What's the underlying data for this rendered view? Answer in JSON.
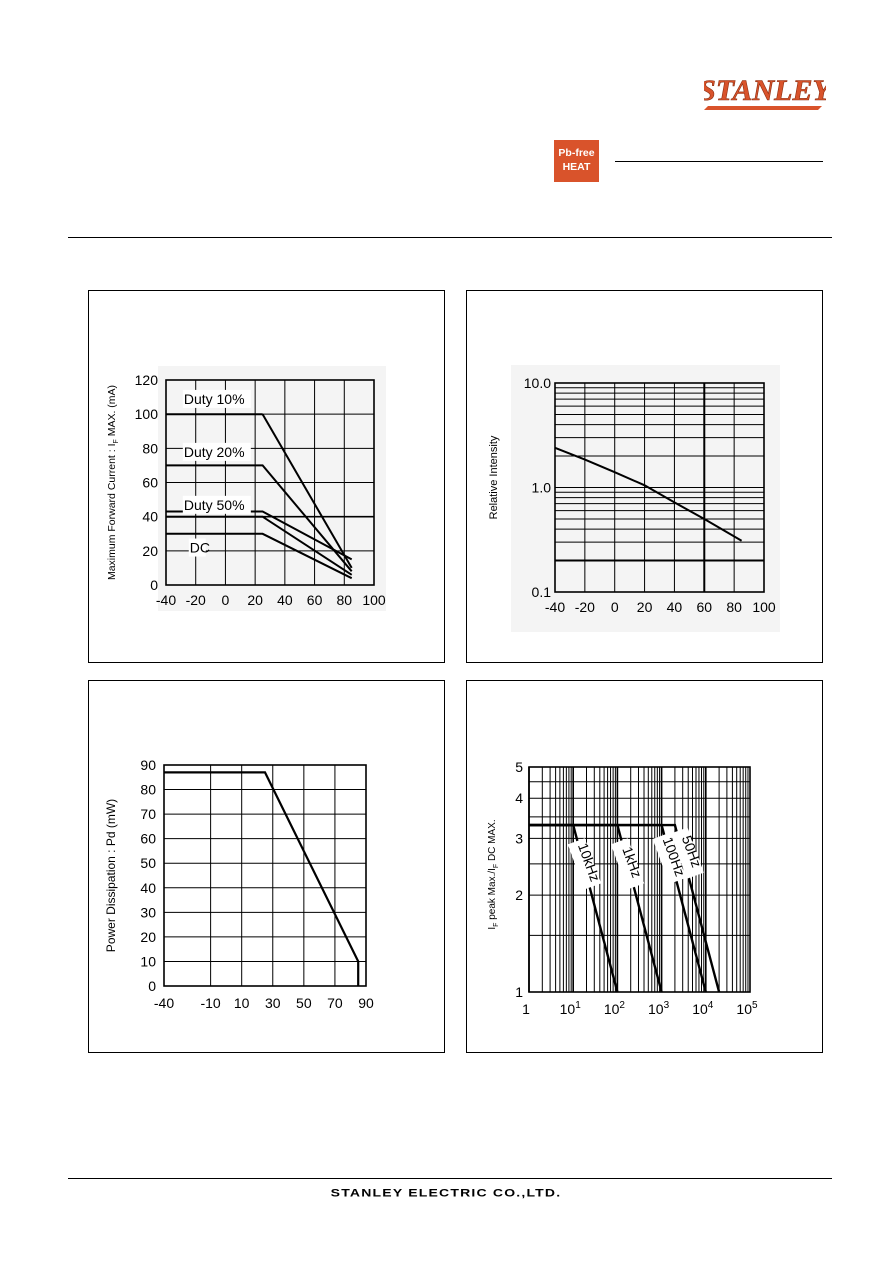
{
  "header": {
    "logo_text": "STANLEY",
    "badge": {
      "line1": "Pb-free",
      "line2": "HEAT"
    },
    "brand_color": "#d9532b"
  },
  "footer": {
    "company": "STANLEY ELECTRIC CO.,LTD."
  },
  "chart_data": [
    {
      "type": "line",
      "ylabel_main": "Maximum Forward Current : I",
      "ylabel_sub": "F",
      "ylabel_rest": " MAX. (mA)",
      "xlim": [
        -40,
        100
      ],
      "ylim": [
        0,
        120
      ],
      "xticks": [
        "-40",
        "-20",
        "0",
        "20",
        "40",
        "60",
        "80",
        "100"
      ],
      "yticks": [
        "0",
        "20",
        "40",
        "60",
        "80",
        "100",
        "120"
      ],
      "grid": true,
      "series": [
        {
          "name": "Duty 10%",
          "x": [
            25,
            85
          ],
          "y": [
            100,
            10
          ]
        },
        {
          "name": "Duty 20%",
          "x": [
            -40,
            25,
            85
          ],
          "y": [
            70,
            70,
            8
          ]
        },
        {
          "name": "Duty 50%",
          "x": [
            -40,
            25,
            85
          ],
          "y": [
            40,
            40,
            6
          ]
        },
        {
          "name": "DC",
          "x": [
            -40,
            25,
            85
          ],
          "y": [
            30,
            30,
            4
          ]
        }
      ],
      "extra_lines": [
        {
          "x": [
            -40,
            25
          ],
          "y": [
            100,
            100
          ]
        },
        {
          "x": [
            -40,
            25,
            85
          ],
          "y": [
            43,
            43,
            15
          ]
        }
      ]
    },
    {
      "type": "line",
      "ylabel": "Relative Intensity",
      "xlim": [
        -40,
        100
      ],
      "ylim": [
        0.1,
        10.0
      ],
      "log_y": true,
      "xticks": [
        "-40",
        "-20",
        "0",
        "20",
        "40",
        "60",
        "80",
        "100"
      ],
      "yticks": [
        "0.1",
        "1.0",
        "10.0"
      ],
      "grid": true,
      "series": [
        {
          "x": [
            -40,
            -20,
            0,
            20,
            40,
            60,
            85
          ],
          "y": [
            2.4,
            1.85,
            1.4,
            1.05,
            0.72,
            0.5,
            0.31
          ]
        }
      ]
    },
    {
      "type": "line",
      "ylabel": "Power Dissipation : Pd (mW)",
      "xlim": [
        -40,
        90
      ],
      "ylim": [
        0,
        90
      ],
      "xticks": [
        "-40",
        "-10",
        "10",
        "30",
        "50",
        "70",
        "90"
      ],
      "yticks": [
        "0",
        "10",
        "20",
        "30",
        "40",
        "50",
        "60",
        "70",
        "80",
        "90"
      ],
      "grid": true,
      "series": [
        {
          "x": [
            -40,
            25,
            85,
            85
          ],
          "y": [
            87,
            87,
            10,
            0
          ]
        }
      ]
    },
    {
      "type": "line",
      "ylabel_main": "I",
      "ylabel_sub": "F",
      "ylabel_mid": " peak Max./I",
      "ylabel_sub2": "F",
      "ylabel_rest": " DC MAX.",
      "log_x": true,
      "log_y": true,
      "xlim": [
        1,
        100000
      ],
      "ylim": [
        1,
        5
      ],
      "xtick_base": [
        "1",
        "10",
        "10",
        "10",
        "10",
        "10"
      ],
      "xtick_exp": [
        "",
        "1",
        "2",
        "3",
        "4",
        "5"
      ],
      "yticks": [
        "1",
        "2",
        "3",
        "4",
        "5"
      ],
      "grid": true,
      "series": [
        {
          "name": "10kHz",
          "x": [
            1,
            10,
            100
          ],
          "y": [
            3.3,
            3.3,
            1
          ]
        },
        {
          "name": "1kHz",
          "x": [
            1,
            100,
            1000
          ],
          "y": [
            3.3,
            3.3,
            1
          ]
        },
        {
          "name": "100Hz",
          "x": [
            1,
            1000,
            10000
          ],
          "y": [
            3.3,
            3.3,
            1
          ]
        },
        {
          "name": "50Hz",
          "x": [
            1,
            2000,
            20000
          ],
          "y": [
            3.3,
            3.3,
            1
          ]
        }
      ]
    }
  ]
}
